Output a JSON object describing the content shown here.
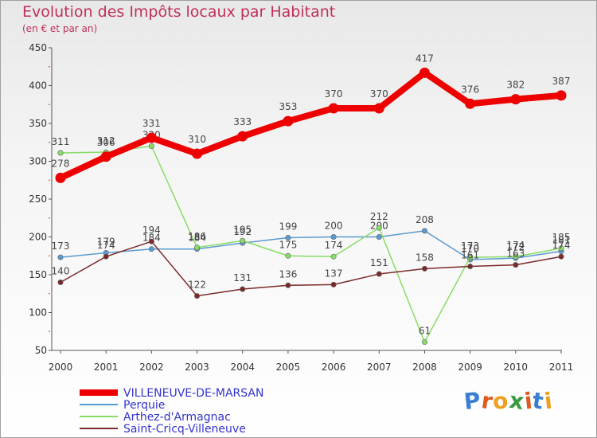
{
  "header": {
    "title": "Evolution des Impôts locaux par Habitant",
    "subtitle": "(en € et par an)"
  },
  "logo": {
    "letters": [
      "P",
      "r",
      "o",
      "x",
      "i",
      "t",
      "i"
    ],
    "colors": [
      "#3a7fd0",
      "#e05a20",
      "#f0a020",
      "#3a9a40",
      "#e05a20",
      "#3a7fd0",
      "#f0a020"
    ]
  },
  "chart_data": {
    "type": "line",
    "title": "Evolution des Impôts locaux par Habitant",
    "subtitle": "(en € et par an)",
    "xlabel": "",
    "ylabel": "",
    "ylim": [
      50,
      450
    ],
    "yticks": [
      50,
      100,
      150,
      200,
      250,
      300,
      350,
      400,
      450
    ],
    "x": [
      "2000",
      "2001",
      "2002",
      "2003",
      "2004",
      "2005",
      "2006",
      "2007",
      "2008",
      "2009",
      "2010",
      "2011"
    ],
    "legend_position": "bottom-left",
    "series": [
      {
        "name": "VILLENEUVE-DE-MARSAN",
        "color": "#ee0000",
        "values": [
          278,
          306,
          331,
          310,
          333,
          353,
          370,
          370,
          417,
          376,
          382,
          387
        ],
        "labels": [
          "278",
          "306",
          "331",
          "310",
          "333",
          "353",
          "370",
          "370",
          "417",
          "376",
          "382",
          "387"
        ]
      },
      {
        "name": "Perquie",
        "color": "#5a9ad0",
        "values": [
          173,
          179,
          184,
          184,
          192,
          199,
          200,
          200,
          208,
          170,
          172,
          181
        ],
        "labels": [
          "173",
          "179",
          "184",
          "184",
          "192",
          "199",
          "200",
          "200",
          "208",
          "170",
          "172",
          "181"
        ]
      },
      {
        "name": "Arthez-d'Armagnac",
        "color": "#88dd66",
        "values": [
          311,
          312,
          320,
          186,
          195,
          175,
          174,
          212,
          61,
          173,
          174,
          185
        ],
        "labels": [
          "311",
          "312",
          "320",
          "186",
          "195",
          "175",
          "174",
          "212",
          "61",
          "173",
          "174",
          "185"
        ]
      },
      {
        "name": "Saint-Cricq-Villeneuve",
        "color": "#7a2a2a",
        "values": [
          140,
          174,
          194,
          122,
          131,
          136,
          137,
          151,
          158,
          161,
          163,
          174
        ],
        "labels": [
          "140",
          "174",
          "194",
          "122",
          "131",
          "136",
          "137",
          "151",
          "158",
          "161",
          "163",
          "174"
        ]
      }
    ]
  }
}
